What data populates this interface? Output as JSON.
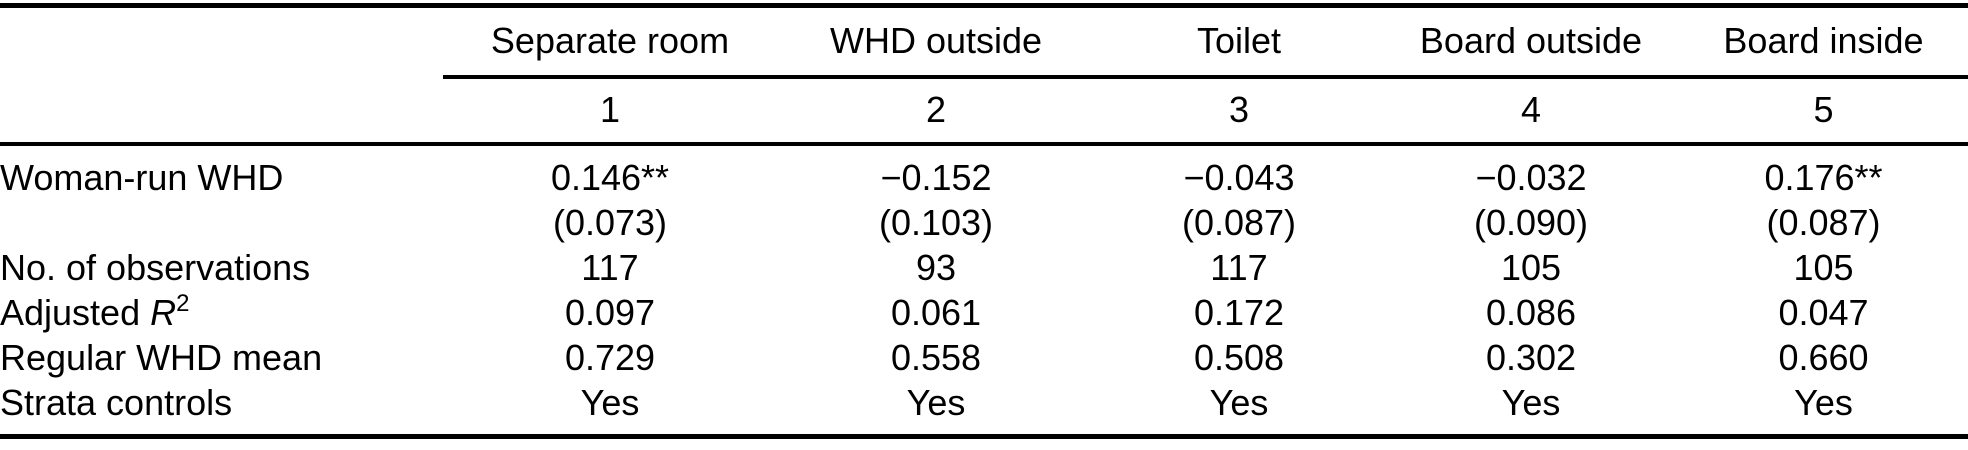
{
  "colors": {
    "text": "#000000",
    "rule": "#000000",
    "background": "#ffffff"
  },
  "table": {
    "column_headers": [
      "Separate room",
      "WHD outside",
      "Toilet",
      "Board outside",
      "Board inside"
    ],
    "column_numbers": [
      "1",
      "2",
      "3",
      "4",
      "5"
    ],
    "rows": [
      {
        "label": "Woman-run WHD",
        "values": [
          "0.146**",
          "−0.152",
          "−0.043",
          "−0.032",
          "0.176**"
        ]
      },
      {
        "label": "",
        "values": [
          "(0.073)",
          "(0.103)",
          "(0.087)",
          "(0.090)",
          "(0.087)"
        ]
      },
      {
        "label": "No. of observations",
        "values": [
          "117",
          "93",
          "117",
          "105",
          "105"
        ]
      },
      {
        "label": "Adjusted ",
        "label_math": "R",
        "label_sup": "2",
        "values": [
          "0.097",
          "0.061",
          "0.172",
          "0.086",
          "0.047"
        ]
      },
      {
        "label": "Regular WHD mean",
        "values": [
          "0.729",
          "0.558",
          "0.508",
          "0.302",
          "0.660"
        ]
      },
      {
        "label": "Strata controls",
        "values": [
          "Yes",
          "Yes",
          "Yes",
          "Yes",
          "Yes"
        ]
      }
    ]
  }
}
